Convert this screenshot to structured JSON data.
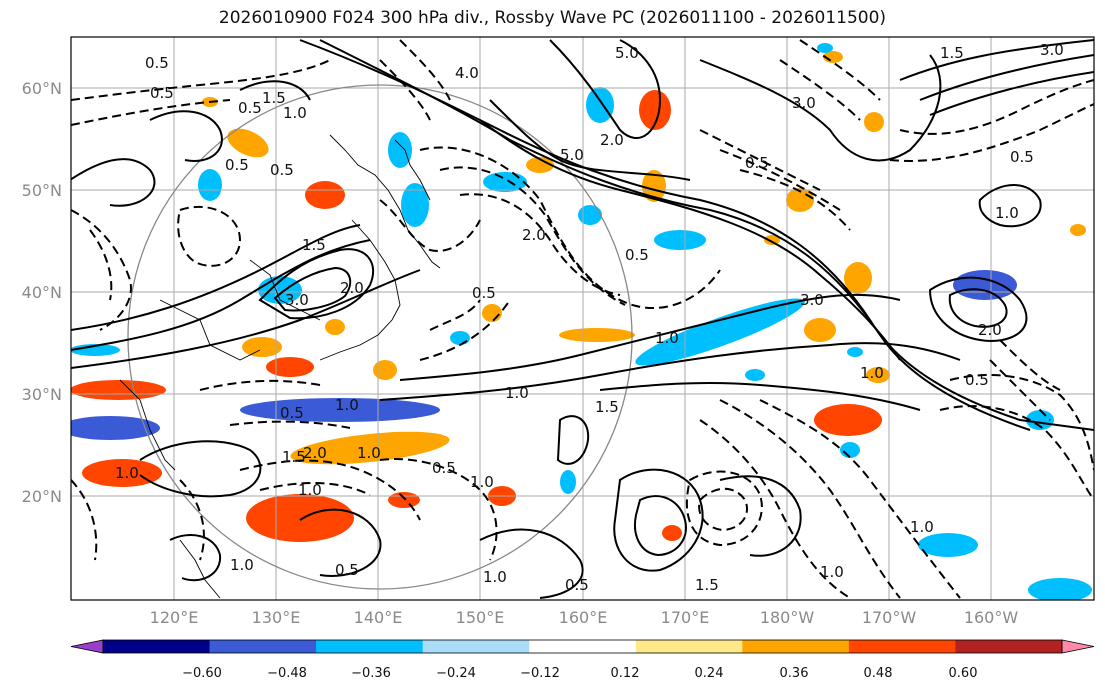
{
  "title": "2026010900 F024 300 hPa div., Rossby Wave PC (2026011100 - 2026011500)",
  "lat_labels": [
    "60°N",
    "50°N",
    "40°N",
    "30°N",
    "20°N"
  ],
  "lon_labels": [
    "120°E",
    "130°E",
    "140°E",
    "150°E",
    "160°E",
    "170°E",
    "180°W",
    "170°W",
    "160°W"
  ],
  "contour_labels": [
    "0.5",
    "0.5",
    "1.5",
    "1.0",
    "0.5",
    "0.5",
    "0.5",
    "1.5",
    "3.0",
    "4.0",
    "2.0",
    "5.0",
    "5.0",
    "3.0",
    "1.5",
    "0.5",
    "2.0",
    "0.5",
    "1.0",
    "3.0",
    "1.0",
    "1.5",
    "2.0",
    "1.0",
    "1.5",
    "0.5",
    "1.0",
    "2.0",
    "1.0",
    "1.0",
    "0.5",
    "3.0",
    "1.0",
    "1.0",
    "0.5",
    "0.5",
    "1.0",
    "1.0",
    "0.5",
    "1.0",
    "1.5",
    "1.0",
    "1.0",
    "0.5",
    "2.0",
    "0.5"
  ],
  "colorbar": {
    "ticks": [
      "−0.60",
      "−0.48",
      "−0.36",
      "−0.24",
      "−0.12",
      "0.12",
      "0.24",
      "0.36",
      "0.48",
      "0.60"
    ],
    "colors": [
      "#9a3fcc",
      "#000088",
      "#3a5ad6",
      "#00bfff",
      "#aadcf8",
      "#ffffff",
      "#ffe88a",
      "#ffa500",
      "#ff4500",
      "#b22222",
      "#ff8aa8"
    ]
  },
  "colors": {
    "positive": "#ffa500",
    "negative": "#00bfff",
    "contour": "#000000",
    "grid": "#aaaaaa"
  }
}
